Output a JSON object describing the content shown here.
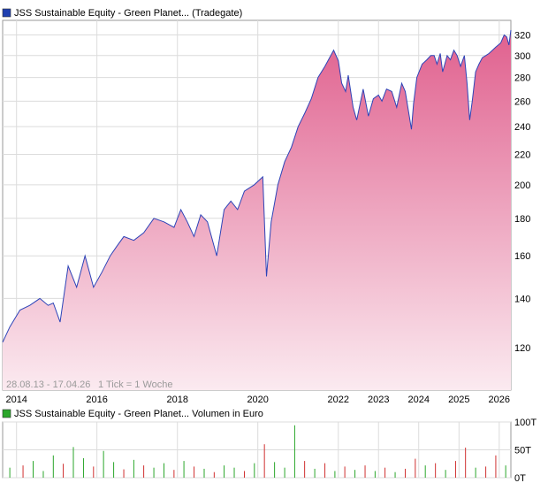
{
  "chart_data": [
    {
      "type": "area",
      "title": "JSS Sustainable Equity - Green Planet... (Tradegate)",
      "legend_color": "#1f3fb0",
      "date_range": "28.08.13 - 17.04.26",
      "tick_note": "1 Tick = 1 Woche",
      "y_scale": "log",
      "ylim": [
        105,
        335
      ],
      "y_ticks": [
        120,
        140,
        160,
        180,
        200,
        220,
        240,
        260,
        280,
        300,
        320
      ],
      "x_ticks": [
        {
          "label": "2014",
          "date": "2014-01-01"
        },
        {
          "label": "2016",
          "date": "2016-01-01"
        },
        {
          "label": "2018",
          "date": "2018-01-01"
        },
        {
          "label": "2020",
          "date": "2020-01-01"
        },
        {
          "label": "2022",
          "date": "2022-01-01"
        },
        {
          "label": "2023",
          "date": "2023-01-01"
        },
        {
          "label": "2024",
          "date": "2024-01-01"
        },
        {
          "label": "2025",
          "date": "2025-01-01"
        },
        {
          "label": "2026",
          "date": "2026-01-01"
        }
      ],
      "line_color": "#2d44b8",
      "fill_top_color": "#e0608e",
      "fill_bottom_color": "#fbeaf0",
      "grid": true,
      "x": [
        "2013-08-28",
        "2013-11-01",
        "2014-02-01",
        "2014-05-01",
        "2014-08-01",
        "2014-10-15",
        "2014-12-01",
        "2015-02-01",
        "2015-04-15",
        "2015-07-01",
        "2015-09-15",
        "2015-12-01",
        "2016-02-15",
        "2016-05-01",
        "2016-07-01",
        "2016-09-01",
        "2016-12-01",
        "2017-03-01",
        "2017-06-01",
        "2017-09-01",
        "2017-12-01",
        "2018-02-01",
        "2018-04-01",
        "2018-06-01",
        "2018-08-01",
        "2018-10-01",
        "2018-12-24",
        "2019-03-01",
        "2019-05-01",
        "2019-07-01",
        "2019-09-01",
        "2019-12-01",
        "2020-02-15",
        "2020-03-20",
        "2020-05-01",
        "2020-07-01",
        "2020-09-01",
        "2020-11-01",
        "2021-01-01",
        "2021-03-01",
        "2021-05-01",
        "2021-07-01",
        "2021-09-01",
        "2021-11-20",
        "2022-01-01",
        "2022-02-01",
        "2022-03-08",
        "2022-04-01",
        "2022-05-15",
        "2022-06-17",
        "2022-08-15",
        "2022-10-01",
        "2022-11-15",
        "2023-01-01",
        "2023-02-01",
        "2023-03-15",
        "2023-05-01",
        "2023-06-15",
        "2023-07-31",
        "2023-09-01",
        "2023-10-27",
        "2023-11-15",
        "2023-12-15",
        "2024-02-01",
        "2024-03-15",
        "2024-04-20",
        "2024-05-20",
        "2024-06-15",
        "2024-07-15",
        "2024-08-05",
        "2024-09-15",
        "2024-10-15",
        "2024-11-15",
        "2024-12-15",
        "2025-01-15",
        "2025-02-19",
        "2025-03-15",
        "2025-04-08",
        "2025-05-01",
        "2025-06-01",
        "2025-07-01",
        "2025-08-01",
        "2025-09-01",
        "2025-10-01",
        "2025-11-01",
        "2025-12-01",
        "2026-01-15",
        "2026-02-15",
        "2026-03-10",
        "2026-03-30",
        "2026-04-17"
      ],
      "values": [
        122,
        128,
        135,
        137,
        140,
        137,
        138,
        130,
        155,
        145,
        160,
        145,
        152,
        160,
        165,
        170,
        168,
        172,
        180,
        178,
        175,
        185,
        178,
        170,
        182,
        178,
        160,
        185,
        190,
        185,
        196,
        200,
        205,
        150,
        178,
        200,
        215,
        225,
        240,
        250,
        262,
        280,
        290,
        305,
        295,
        275,
        268,
        282,
        255,
        245,
        270,
        248,
        262,
        265,
        260,
        270,
        268,
        255,
        275,
        268,
        238,
        258,
        280,
        292,
        296,
        300,
        300,
        292,
        302,
        285,
        300,
        296,
        305,
        300,
        290,
        300,
        275,
        245,
        260,
        285,
        292,
        298,
        300,
        302,
        305,
        308,
        312,
        320,
        318,
        310,
        325
      ]
    },
    {
      "type": "bar",
      "title": "JSS Sustainable Equity - Green Planet... Volumen in Euro",
      "legend_color": "#2aa62a",
      "ylim": [
        0,
        100
      ],
      "y_ticks": [
        {
          "label": "0T",
          "value": 0
        },
        {
          "label": "50T",
          "value": 50
        },
        {
          "label": "100T",
          "value": 100
        }
      ],
      "up_color": "#2aa62a",
      "down_color": "#d03030",
      "x": [
        "2013-11-01",
        "2014-03-01",
        "2014-06-01",
        "2014-09-01",
        "2014-12-01",
        "2015-03-01",
        "2015-06-01",
        "2015-09-01",
        "2015-12-01",
        "2016-03-01",
        "2016-06-01",
        "2016-09-01",
        "2016-12-01",
        "2017-03-01",
        "2017-06-01",
        "2017-09-01",
        "2017-12-01",
        "2018-03-01",
        "2018-06-01",
        "2018-09-01",
        "2018-12-01",
        "2019-03-01",
        "2019-06-01",
        "2019-09-01",
        "2019-12-01",
        "2020-03-01",
        "2020-06-01",
        "2020-09-01",
        "2020-12-01",
        "2021-03-01",
        "2021-06-01",
        "2021-09-01",
        "2021-12-01",
        "2022-03-01",
        "2022-06-01",
        "2022-09-01",
        "2022-12-01",
        "2023-03-01",
        "2023-06-01",
        "2023-09-01",
        "2023-12-01",
        "2024-03-01",
        "2024-06-01",
        "2024-09-01",
        "2024-12-01",
        "2025-03-01",
        "2025-06-01",
        "2025-09-01",
        "2025-12-01",
        "2026-03-01"
      ],
      "values": [
        18,
        22,
        30,
        12,
        40,
        25,
        55,
        35,
        20,
        48,
        28,
        15,
        32,
        22,
        18,
        26,
        14,
        30,
        20,
        16,
        10,
        22,
        18,
        12,
        26,
        60,
        28,
        18,
        94,
        30,
        16,
        26,
        12,
        20,
        14,
        22,
        12,
        18,
        10,
        16,
        34,
        22,
        26,
        14,
        30,
        54,
        18,
        20,
        40,
        22
      ],
      "up": [
        true,
        false,
        true,
        true,
        true,
        false,
        true,
        true,
        false,
        true,
        true,
        false,
        true,
        false,
        true,
        true,
        false,
        true,
        false,
        true,
        false,
        true,
        true,
        false,
        true,
        false,
        true,
        true,
        true,
        false,
        true,
        false,
        true,
        false,
        true,
        false,
        true,
        false,
        true,
        false,
        false,
        true,
        false,
        true,
        false,
        false,
        true,
        false,
        false,
        true
      ]
    }
  ]
}
